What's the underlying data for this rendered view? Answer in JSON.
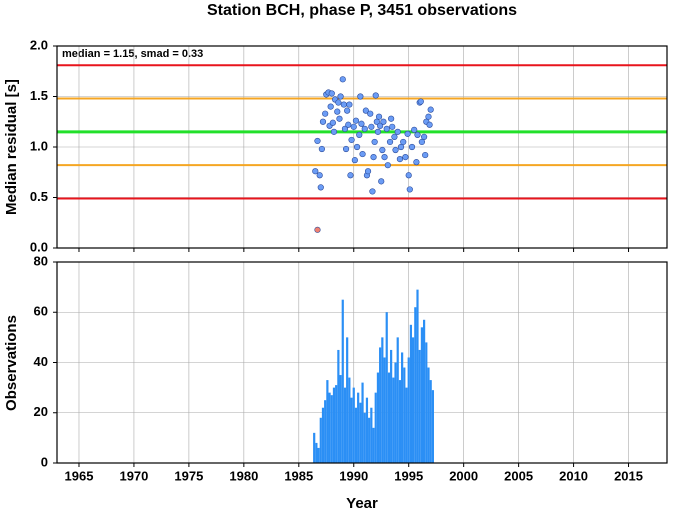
{
  "chart_data": [
    {
      "type": "scatter",
      "title": "Station BCH, phase P, 3451 observations",
      "ylabel": "Median residual [s]",
      "annotation": "median = 1.15, smad = 0.33",
      "xlim": [
        1963,
        2018.5
      ],
      "xticks": [
        1965,
        1970,
        1975,
        1980,
        1985,
        1990,
        1995,
        2000,
        2005,
        2010,
        2015
      ],
      "ylim": [
        0,
        2
      ],
      "yticks": [
        {
          "value": 0,
          "label": "0.0"
        },
        {
          "value": 0.5,
          "label": "0.5"
        },
        {
          "value": 1,
          "label": "1.0"
        },
        {
          "value": 1.5,
          "label": "1.5"
        },
        {
          "value": 2,
          "label": "2.0"
        }
      ],
      "grid": true,
      "hlines": [
        {
          "value": 1.81,
          "color": "#e8141c"
        },
        {
          "value": 1.48,
          "color": "#f5a623"
        },
        {
          "value": 1.15,
          "color": "#22e02a"
        },
        {
          "value": 0.82,
          "color": "#f5a623"
        },
        {
          "value": 0.49,
          "color": "#e8141c"
        }
      ],
      "series": [
        {
          "color": "#6b9cf5",
          "x": [
            1986.5,
            1986.7,
            1986.9,
            1987.0,
            1987.1,
            1987.2,
            1987.4,
            1987.5,
            1987.7,
            1987.8,
            1987.9,
            1988.0,
            1988.1,
            1988.2,
            1988.3,
            1988.5,
            1988.6,
            1988.7,
            1988.8,
            1989.0,
            1989.1,
            1989.2,
            1989.3,
            1989.4,
            1989.5,
            1989.6,
            1989.7,
            1989.8,
            1990.0,
            1990.1,
            1990.2,
            1990.3,
            1990.5,
            1990.6,
            1990.7,
            1990.8,
            1991.0,
            1991.1,
            1991.2,
            1991.3,
            1991.5,
            1991.6,
            1991.7,
            1991.8,
            1991.9,
            1992.0,
            1992.1,
            1992.2,
            1992.3,
            1992.4,
            1992.5,
            1992.6,
            1992.7,
            1992.8,
            1993.0,
            1993.1,
            1993.3,
            1993.4,
            1993.5,
            1993.7,
            1993.8,
            1994.0,
            1994.2,
            1994.3,
            1994.5,
            1994.7,
            1994.9,
            1995.0,
            1995.1,
            1995.3,
            1995.5,
            1995.7,
            1995.8,
            1996.0,
            1996.1,
            1996.2,
            1996.4,
            1996.5,
            1996.6,
            1996.8,
            1996.9,
            1997.0
          ],
          "values": [
            0.76,
            1.06,
            0.72,
            0.6,
            0.98,
            1.25,
            1.33,
            1.52,
            1.54,
            1.21,
            1.4,
            1.53,
            1.24,
            1.15,
            1.47,
            1.35,
            1.44,
            1.28,
            1.5,
            1.67,
            1.42,
            1.18,
            0.98,
            1.36,
            1.22,
            1.42,
            0.72,
            1.07,
            1.2,
            0.87,
            1.26,
            1.0,
            1.12,
            1.5,
            1.23,
            0.93,
            1.18,
            1.36,
            0.72,
            0.76,
            1.33,
            1.2,
            0.56,
            0.9,
            1.05,
            1.51,
            1.25,
            1.15,
            1.3,
            1.21,
            0.66,
            0.97,
            1.25,
            0.9,
            1.18,
            0.82,
            1.05,
            1.28,
            1.2,
            1.1,
            0.97,
            1.15,
            0.88,
            1.0,
            1.05,
            0.9,
            1.13,
            0.72,
            0.58,
            1.0,
            1.17,
            0.85,
            1.12,
            1.44,
            1.45,
            1.05,
            1.1,
            0.92,
            1.25,
            1.3,
            1.22,
            1.37
          ]
        },
        {
          "color": "#f08070",
          "x": [
            1986.7
          ],
          "values": [
            0.18
          ]
        }
      ]
    },
    {
      "type": "bar",
      "xlabel": "Year",
      "ylabel": "Observations",
      "xlim": [
        1963,
        2018.5
      ],
      "xticks": [
        1965,
        1970,
        1975,
        1980,
        1985,
        1990,
        1995,
        2000,
        2005,
        2010,
        2015
      ],
      "ylim": [
        0,
        80
      ],
      "yticks": [
        0,
        20,
        40,
        60,
        80
      ],
      "grid": true,
      "color": "#2b8ff5",
      "x": [
        1986.4,
        1986.6,
        1986.8,
        1987.0,
        1987.2,
        1987.4,
        1987.6,
        1987.8,
        1988.0,
        1988.2,
        1988.4,
        1988.6,
        1988.8,
        1989.0,
        1989.2,
        1989.4,
        1989.6,
        1989.8,
        1990.0,
        1990.2,
        1990.4,
        1990.6,
        1990.8,
        1991.0,
        1991.2,
        1991.4,
        1991.6,
        1991.8,
        1992.0,
        1992.2,
        1992.4,
        1992.6,
        1992.8,
        1993.0,
        1993.2,
        1993.4,
        1993.6,
        1993.8,
        1994.0,
        1994.2,
        1994.4,
        1994.6,
        1994.8,
        1995.0,
        1995.2,
        1995.4,
        1995.6,
        1995.8,
        1996.0,
        1996.2,
        1996.4,
        1996.6,
        1996.8,
        1997.0,
        1997.2
      ],
      "values": [
        12,
        8,
        6,
        18,
        22,
        25,
        33,
        28,
        27,
        30,
        31,
        45,
        35,
        65,
        30,
        50,
        34,
        26,
        30,
        22,
        28,
        24,
        32,
        20,
        26,
        18,
        22,
        14,
        28,
        36,
        46,
        50,
        42,
        60,
        36,
        45,
        34,
        40,
        50,
        33,
        44,
        38,
        30,
        42,
        55,
        50,
        62,
        69,
        45,
        54,
        57,
        48,
        38,
        33,
        29
      ]
    }
  ]
}
